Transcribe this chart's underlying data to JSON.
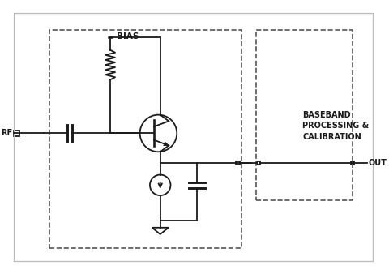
{
  "bg_color": "#ffffff",
  "line_color": "#1a1a1a",
  "dashed_color": "#555555",
  "fig_width": 4.8,
  "fig_height": 3.38,
  "dpi": 100,
  "rf_label": "RF",
  "out_label": "OUT",
  "bias_label": "BIAS",
  "bb_label": "BASEBAND\nPROCESSING &\nCALIBRATION"
}
